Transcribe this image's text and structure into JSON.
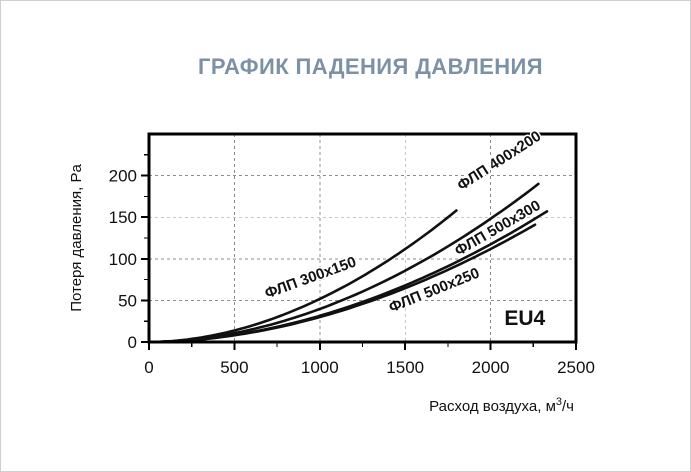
{
  "title": "ГРАФИК ПАДЕНИЯ ДАВЛЕНИЯ",
  "colors": {
    "title": "#7d91a6",
    "curve": "#111111",
    "grid": "#8c8c8c",
    "axis": "#000000",
    "text": "#111111",
    "background": "#ffffff"
  },
  "chart_data": {
    "type": "line",
    "title": "ГРАФИК ПАДЕНИЯ ДАВЛЕНИЯ",
    "xlabel": "Расход воздуха, м³/ч",
    "xlabel_parts": {
      "base": "Расход воздуха, м",
      "sup": "3",
      "tail": "/ч"
    },
    "ylabel": "Потеря давления, Pa",
    "xlim": [
      0,
      2500
    ],
    "ylim": [
      0,
      250
    ],
    "x_major_ticks": [
      0,
      500,
      1000,
      1500,
      2000,
      2500
    ],
    "y_major_ticks": [
      0,
      50,
      100,
      150,
      200
    ],
    "x_minor_step": 250,
    "y_minor_step": 25,
    "grid": "dashed",
    "legend_position": "labels-on-curves",
    "annotation": {
      "text": "EU4",
      "x": 2200,
      "y": 30
    },
    "series": [
      {
        "name": "ФЛП 300x150",
        "x_end": 1800,
        "y_end": 158,
        "exponent": 1.9,
        "x_samples": [
          0,
          300,
          600,
          900,
          1200,
          1500,
          1800
        ],
        "values": [
          0,
          5,
          20,
          42,
          73,
          112,
          158
        ],
        "label": {
          "x": 955,
          "y": 72,
          "angle": -20
        }
      },
      {
        "name": "ФЛП 400x200",
        "x_end": 2280,
        "y_end": 190,
        "exponent": 1.9,
        "x_samples": [
          0,
          400,
          800,
          1200,
          1600,
          2000,
          2280
        ],
        "values": [
          0,
          7,
          26,
          56,
          97,
          148,
          190
        ],
        "label": {
          "x": 2065,
          "y": 213,
          "angle": -33
        }
      },
      {
        "name": "ФЛП 500x300",
        "x_end": 2330,
        "y_end": 157,
        "exponent": 1.9,
        "x_samples": [
          0,
          400,
          800,
          1200,
          1600,
          2000,
          2330
        ],
        "values": [
          0,
          6,
          21,
          44,
          77,
          117,
          157
        ],
        "label": {
          "x": 2055,
          "y": 132,
          "angle": -30
        }
      },
      {
        "name": "ФЛП 500x250",
        "x_end": 2260,
        "y_end": 141,
        "exponent": 1.9,
        "x_samples": [
          0,
          400,
          800,
          1200,
          1600,
          2000,
          2260
        ],
        "values": [
          0,
          5,
          20,
          42,
          73,
          112,
          141
        ],
        "label": {
          "x": 1680,
          "y": 57,
          "angle": -22
        }
      }
    ]
  }
}
